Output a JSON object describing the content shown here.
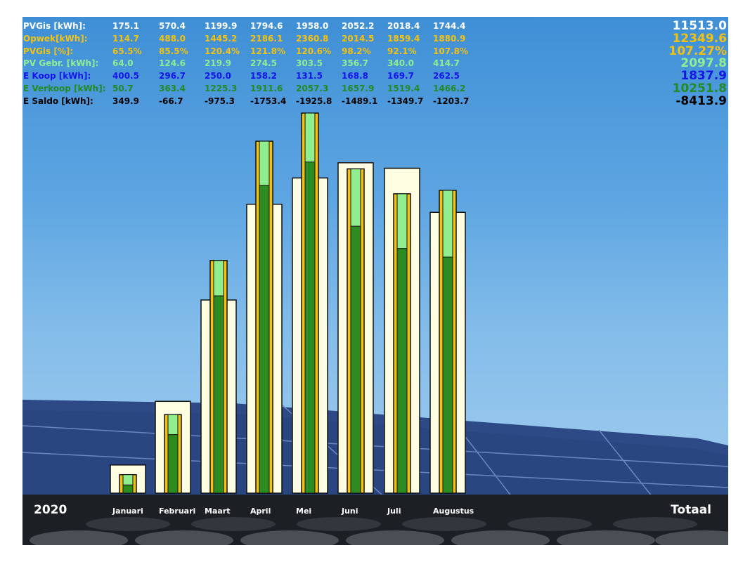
{
  "year": "2020",
  "total_label": "Totaal",
  "colors": {
    "pvgis": "#ffffff",
    "opwek": "#f4c20d",
    "pvgis_pct": "#f4c20d",
    "pv_gebr": "#90ee90",
    "e_koop": "#1515e8",
    "e_verkoop": "#228b22",
    "e_saldo": "#000000",
    "pvgis_bar": "#fffde2",
    "opwek_bar": "#f4c20d",
    "gebr_bar": "#90ee90",
    "verkoop_bar": "#2e8b22"
  },
  "rows": [
    {
      "label": "PVGis [kWh]:",
      "values": [
        "175.1",
        "570.4",
        "1199.9",
        "1794.6",
        "1958.0",
        "2052.2",
        "2018.4",
        "1744.4"
      ],
      "total": "11513.0"
    },
    {
      "label": "Opwek[kWh]:",
      "values": [
        "114.7",
        "488.0",
        "1445.2",
        "2186.1",
        "2360.8",
        "2014.5",
        "1859.4",
        "1880.9"
      ],
      "total": "12349.6"
    },
    {
      "label": "PVGis [%]:",
      "values": [
        "65.5%",
        "85.5%",
        "120.4%",
        "121.8%",
        "120.6%",
        "98.2%",
        "92.1%",
        "107.8%"
      ],
      "total": "107.27%"
    },
    {
      "label": "PV Gebr. [kWh]:",
      "values": [
        "64.0",
        "124.6",
        "219.9",
        "274.5",
        "303.5",
        "356.7",
        "340.0",
        "414.7"
      ],
      "total": "2097.8"
    },
    {
      "label": "E Koop [kWh]:",
      "values": [
        "400.5",
        "296.7",
        "250.0",
        "158.2",
        "131.5",
        "168.8",
        "169.7",
        "262.5"
      ],
      "total": "1837.9"
    },
    {
      "label": "E Verkoop [kWh]:",
      "values": [
        "50.7",
        "363.4",
        "1225.3",
        "1911.6",
        "2057.3",
        "1657.9",
        "1519.4",
        "1466.2"
      ],
      "total": "10251.8"
    },
    {
      "label": "E Saldo [kWh]:",
      "values": [
        "349.9",
        "-66.7",
        "-975.3",
        "-1753.4",
        "-1925.8",
        "-1489.1",
        "-1349.7",
        "-1203.7"
      ],
      "total": "-8413.9"
    }
  ],
  "chart_data": {
    "type": "bar",
    "categories": [
      "Januari",
      "Februari",
      "Maart",
      "April",
      "Mei",
      "Juni",
      "Juli",
      "Augustus"
    ],
    "series": [
      {
        "name": "PVGis [kWh]",
        "values": [
          175.1,
          570.4,
          1199.9,
          1794.6,
          1958.0,
          2052.2,
          2018.4,
          1744.4
        ]
      },
      {
        "name": "Opwek[kWh]",
        "values": [
          114.7,
          488.0,
          1445.2,
          2186.1,
          2360.8,
          2014.5,
          1859.4,
          1880.9
        ]
      },
      {
        "name": "PV Gebr. [kWh]",
        "values": [
          64.0,
          124.6,
          219.9,
          274.5,
          303.5,
          356.7,
          340.0,
          414.7
        ]
      },
      {
        "name": "E Verkoop [kWh]",
        "values": [
          50.7,
          363.4,
          1225.3,
          1911.6,
          2057.3,
          1657.9,
          1519.4,
          1466.2
        ]
      }
    ],
    "ylim": [
      0,
      2360.8
    ],
    "grid": false,
    "legend": "none"
  }
}
